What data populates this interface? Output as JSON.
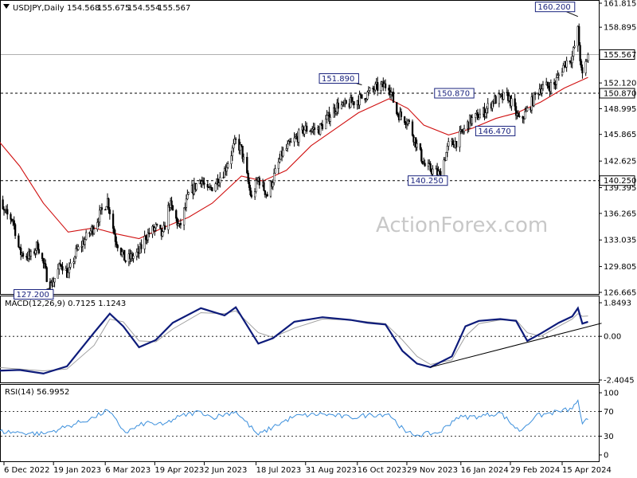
{
  "chart_data": [
    {
      "type": "candlestick",
      "title": "USDJPY,Daily",
      "ohlc": [
        154.568,
        155.675,
        154.554,
        155.567
      ],
      "current_price": 155.567,
      "ylim": [
        126.665,
        161.815
      ],
      "yticks": [
        161.815,
        158.895,
        155.567,
        152.12,
        150.87,
        148.995,
        145.865,
        142.625,
        140.25,
        139.395,
        136.265,
        133.035,
        129.805,
        126.665
      ],
      "x_tick_labels": [
        "6 Dec 2022",
        "19 Jan 2023",
        "6 Mar 2023",
        "19 Apr 2023",
        "2 Jun 2023",
        "18 Jul 2023",
        "31 Aug 2023",
        "16 Oct 2023",
        "29 Nov 2023",
        "16 Jan 2024",
        "29 Feb 2024",
        "15 Apr 2024"
      ],
      "horizontal_levels": [
        150.87,
        140.25
      ],
      "annotations": [
        {
          "label": "127.200",
          "date": "2023-01-16",
          "value": 127.2
        },
        {
          "label": "151.890",
          "date": "2023-10-20",
          "value": 151.89
        },
        {
          "label": "150.870",
          "date": "2024-01-29",
          "value": 150.87
        },
        {
          "label": "146.470",
          "date": "2024-02-01",
          "value": 146.47
        },
        {
          "label": "140.250",
          "date": "2023-12-28",
          "value": 140.25
        },
        {
          "label": "160.200",
          "date": "2024-04-29",
          "value": 160.2
        }
      ],
      "anchors": [
        [
          "2022-11-28",
          138.8
        ],
        [
          "2022-12-05",
          136.5
        ],
        [
          "2022-12-14",
          135.5
        ],
        [
          "2022-12-20",
          131.5
        ],
        [
          "2022-12-30",
          131.0
        ],
        [
          "2023-01-05",
          132.5
        ],
        [
          "2023-01-16",
          127.2
        ],
        [
          "2023-01-26",
          130.2
        ],
        [
          "2023-02-01",
          128.8
        ],
        [
          "2023-02-08",
          131.5
        ],
        [
          "2023-02-23",
          134.5
        ],
        [
          "2023-03-08",
          137.9
        ],
        [
          "2023-03-15",
          133.2
        ],
        [
          "2023-03-24",
          130.5
        ],
        [
          "2023-04-05",
          131.5
        ],
        [
          "2023-04-11",
          133.5
        ],
        [
          "2023-04-20",
          134.5
        ],
        [
          "2023-04-26",
          133.5
        ],
        [
          "2023-05-02",
          137.5
        ],
        [
          "2023-05-11",
          134.5
        ],
        [
          "2023-05-19",
          138.5
        ],
        [
          "2023-05-30",
          140.5
        ],
        [
          "2023-06-05",
          138.8
        ],
        [
          "2023-06-20",
          141.5
        ],
        [
          "2023-06-30",
          145.0
        ],
        [
          "2023-07-05",
          144.0
        ],
        [
          "2023-07-14",
          138.0
        ],
        [
          "2023-07-20",
          140.5
        ],
        [
          "2023-07-28",
          138.5
        ],
        [
          "2023-08-10",
          143.5
        ],
        [
          "2023-08-30",
          146.5
        ],
        [
          "2023-09-12",
          146.5
        ],
        [
          "2023-09-29",
          149.5
        ],
        [
          "2023-10-03",
          149.2
        ],
        [
          "2023-10-12",
          149.8
        ],
        [
          "2023-10-20",
          150.3
        ],
        [
          "2023-11-01",
          151.5
        ],
        [
          "2023-11-13",
          151.89
        ],
        [
          "2023-11-20",
          148.5
        ],
        [
          "2023-11-30",
          147.5
        ],
        [
          "2023-12-08",
          144.5
        ],
        [
          "2023-12-15",
          142.0
        ],
        [
          "2023-12-28",
          141.0
        ],
        [
          "2024-01-05",
          144.5
        ],
        [
          "2024-01-12",
          145.0
        ],
        [
          "2024-01-24",
          147.5
        ],
        [
          "2024-02-05",
          148.5
        ],
        [
          "2024-02-14",
          150.0
        ],
        [
          "2024-02-27",
          150.5
        ],
        [
          "2024-03-08",
          147.5
        ],
        [
          "2024-03-14",
          148.5
        ],
        [
          "2024-03-26",
          151.5
        ],
        [
          "2024-04-08",
          151.9
        ],
        [
          "2024-04-17",
          154.5
        ],
        [
          "2024-04-24",
          155.3
        ],
        [
          "2024-04-29",
          158.5
        ],
        [
          "2024-05-02",
          153.5
        ],
        [
          "2024-05-03",
          152.9
        ],
        [
          "2024-05-08",
          155.567
        ]
      ],
      "sma": {
        "label": "moving average",
        "color": "#d01010",
        "points": [
          [
            "2022-11-28",
            145.6
          ],
          [
            "2022-12-20",
            142.0
          ],
          [
            "2023-01-10",
            137.5
          ],
          [
            "2023-02-01",
            134.0
          ],
          [
            "2023-02-24",
            134.5
          ],
          [
            "2023-03-15",
            133.8
          ],
          [
            "2023-04-05",
            133.2
          ],
          [
            "2023-04-26",
            134.5
          ],
          [
            "2023-05-19",
            135.8
          ],
          [
            "2023-06-09",
            137.5
          ],
          [
            "2023-07-05",
            140.8
          ],
          [
            "2023-07-24",
            140.2
          ],
          [
            "2023-08-14",
            141.5
          ],
          [
            "2023-09-05",
            144.5
          ],
          [
            "2023-09-26",
            146.5
          ],
          [
            "2023-10-17",
            148.5
          ],
          [
            "2023-11-13",
            150.2
          ],
          [
            "2023-11-30",
            149.0
          ],
          [
            "2023-12-14",
            147.0
          ],
          [
            "2024-01-05",
            145.8
          ],
          [
            "2024-01-26",
            146.6
          ],
          [
            "2024-02-16",
            147.8
          ],
          [
            "2024-03-06",
            148.5
          ],
          [
            "2024-03-27",
            149.8
          ],
          [
            "2024-04-17",
            151.5
          ],
          [
            "2024-05-08",
            152.8
          ]
        ]
      },
      "watermark": "ActionForex.com"
    },
    {
      "type": "line",
      "title": "MACD(12,26,9) 0.7125 1.1243",
      "ylim": [
        -2.4045,
        1.8493
      ],
      "yticks": [
        "1.8493",
        "0.00",
        "-2.4045"
      ],
      "series": [
        {
          "color": "#0d1b7a",
          "points": [
            [
              "2022-11-28",
              -1.9
            ],
            [
              "2022-12-20",
              -1.85
            ],
            [
              "2023-01-10",
              -2.05
            ],
            [
              "2023-01-31",
              -1.65
            ],
            [
              "2023-02-24",
              0.2
            ],
            [
              "2023-03-10",
              1.25
            ],
            [
              "2023-03-22",
              0.55
            ],
            [
              "2023-04-05",
              -0.6
            ],
            [
              "2023-04-20",
              -0.2
            ],
            [
              "2023-05-05",
              0.75
            ],
            [
              "2023-05-30",
              1.55
            ],
            [
              "2023-06-20",
              1.15
            ],
            [
              "2023-06-30",
              1.6
            ],
            [
              "2023-07-20",
              -0.4
            ],
            [
              "2023-08-02",
              -0.1
            ],
            [
              "2023-08-21",
              0.8
            ],
            [
              "2023-09-15",
              1.05
            ],
            [
              "2023-10-10",
              0.9
            ],
            [
              "2023-10-25",
              0.75
            ],
            [
              "2023-11-10",
              0.65
            ],
            [
              "2023-11-25",
              -0.8
            ],
            [
              "2023-12-08",
              -1.5
            ],
            [
              "2023-12-20",
              -1.7
            ],
            [
              "2024-01-08",
              -1.1
            ],
            [
              "2024-01-20",
              0.55
            ],
            [
              "2024-02-01",
              0.85
            ],
            [
              "2024-02-20",
              0.95
            ],
            [
              "2024-03-05",
              0.85
            ],
            [
              "2024-03-15",
              -0.25
            ],
            [
              "2024-03-27",
              0.15
            ],
            [
              "2024-04-12",
              0.75
            ],
            [
              "2024-04-24",
              1.1
            ],
            [
              "2024-04-29",
              1.55
            ],
            [
              "2024-05-03",
              0.7
            ],
            [
              "2024-05-08",
              0.8
            ]
          ]
        },
        {
          "color": "#a0a0a0",
          "points": [
            [
              "2022-11-28",
              -1.7
            ],
            [
              "2022-12-20",
              -1.8
            ],
            [
              "2023-01-10",
              -1.9
            ],
            [
              "2023-01-31",
              -1.8
            ],
            [
              "2023-02-24",
              -0.5
            ],
            [
              "2023-03-10",
              0.95
            ],
            [
              "2023-03-22",
              0.8
            ],
            [
              "2023-04-05",
              -0.25
            ],
            [
              "2023-04-20",
              -0.3
            ],
            [
              "2023-05-05",
              0.4
            ],
            [
              "2023-05-30",
              1.3
            ],
            [
              "2023-06-20",
              1.25
            ],
            [
              "2023-06-30",
              1.4
            ],
            [
              "2023-07-20",
              0.2
            ],
            [
              "2023-08-02",
              -0.05
            ],
            [
              "2023-08-21",
              0.45
            ],
            [
              "2023-09-15",
              0.95
            ],
            [
              "2023-10-10",
              0.9
            ],
            [
              "2023-10-25",
              0.8
            ],
            [
              "2023-11-10",
              0.7
            ],
            [
              "2023-11-25",
              -0.2
            ],
            [
              "2023-12-08",
              -1.1
            ],
            [
              "2023-12-20",
              -1.55
            ],
            [
              "2024-01-08",
              -1.3
            ],
            [
              "2024-01-20",
              0.0
            ],
            [
              "2024-02-01",
              0.7
            ],
            [
              "2024-02-20",
              0.9
            ],
            [
              "2024-03-05",
              0.9
            ],
            [
              "2024-03-15",
              0.2
            ],
            [
              "2024-03-27",
              0.0
            ],
            [
              "2024-04-12",
              0.55
            ],
            [
              "2024-04-24",
              0.95
            ],
            [
              "2024-04-29",
              1.25
            ],
            [
              "2024-05-03",
              1.1
            ],
            [
              "2024-05-08",
              1.12
            ]
          ]
        }
      ],
      "trendline": [
        [
          "2023-12-20",
          -1.7
        ],
        [
          "2024-05-20",
          0.72
        ]
      ]
    },
    {
      "type": "line",
      "title": "RSI(14) 56.9952",
      "ylim": [
        0,
        100
      ],
      "yticks": [
        100,
        70,
        30,
        0
      ],
      "levels": [
        70,
        30
      ],
      "series": [
        {
          "color": "#3b8fdc",
          "points": [
            [
              "2022-11-28",
              38
            ],
            [
              "2022-12-20",
              36
            ],
            [
              "2023-01-10",
              34
            ],
            [
              "2023-01-25",
              42
            ],
            [
              "2023-02-24",
              60
            ],
            [
              "2023-03-08",
              72
            ],
            [
              "2023-03-24",
              36
            ],
            [
              "2023-04-11",
              52
            ],
            [
              "2023-04-26",
              48
            ],
            [
              "2023-05-11",
              62
            ],
            [
              "2023-05-30",
              70
            ],
            [
              "2023-06-09",
              60
            ],
            [
              "2023-06-30",
              70
            ],
            [
              "2023-07-20",
              32
            ],
            [
              "2023-08-02",
              45
            ],
            [
              "2023-08-21",
              62
            ],
            [
              "2023-09-15",
              66
            ],
            [
              "2023-10-10",
              60
            ],
            [
              "2023-10-25",
              64
            ],
            [
              "2023-11-13",
              66
            ],
            [
              "2023-11-28",
              36
            ],
            [
              "2023-12-08",
              32
            ],
            [
              "2023-12-28",
              36
            ],
            [
              "2024-01-12",
              60
            ],
            [
              "2024-02-01",
              62
            ],
            [
              "2024-02-20",
              68
            ],
            [
              "2024-03-08",
              38
            ],
            [
              "2024-03-22",
              62
            ],
            [
              "2024-04-12",
              70
            ],
            [
              "2024-04-24",
              74
            ],
            [
              "2024-04-29",
              88
            ],
            [
              "2024-05-03",
              50
            ],
            [
              "2024-05-08",
              57
            ]
          ]
        }
      ]
    }
  ]
}
